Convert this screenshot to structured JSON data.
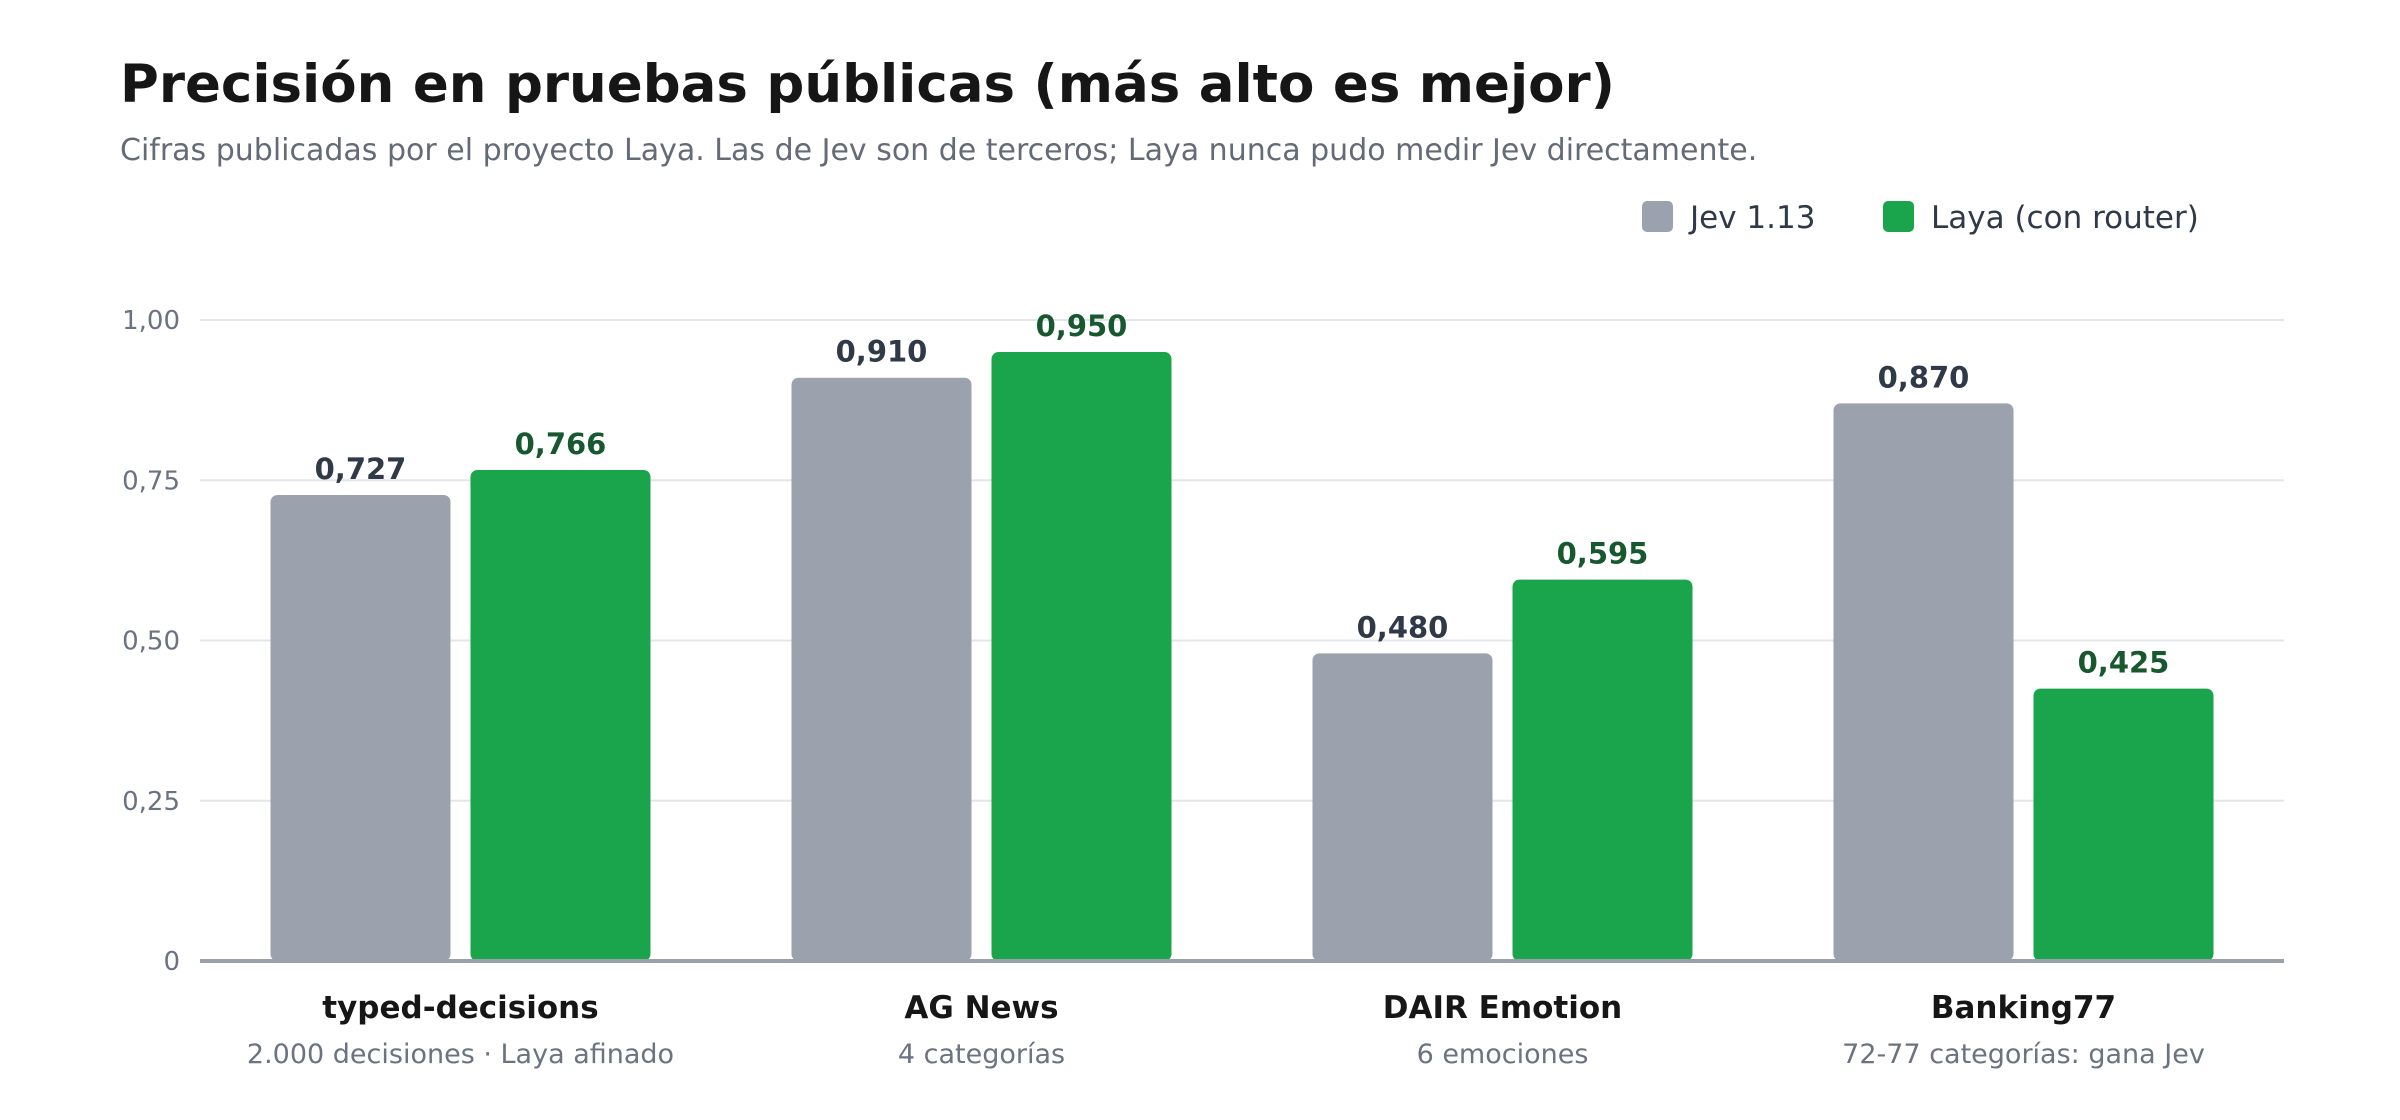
{
  "chart_data": {
    "type": "bar",
    "title": "Precisión en pruebas públicas (más alto es mejor)",
    "subtitle": "Cifras publicadas por el proyecto Laya. Las de Jev son de terceros; Laya nunca pudo medir Jev directamente.",
    "categories": [
      "typed-decisions",
      "AG News",
      "DAIR Emotion",
      "Banking77"
    ],
    "category_subtitles": [
      "2.000 decisiones · Laya afinado",
      "4 categorías",
      "6 emociones",
      "72-77 categorías: gana Jev"
    ],
    "series": [
      {
        "name": "Jev 1.13",
        "values": [
          0.727,
          0.91,
          0.48,
          0.87
        ],
        "labels": [
          "0,727",
          "0,910",
          "0,480",
          "0,870"
        ],
        "color": "#9ca2ad",
        "label_color": "#2f3947"
      },
      {
        "name": "Laya (con router)",
        "values": [
          0.766,
          0.95,
          0.595,
          0.425
        ],
        "labels": [
          "0,766",
          "0,950",
          "0,595",
          "0,425"
        ],
        "color": "#1aa44b",
        "label_color": "#17582f"
      }
    ],
    "ylim": [
      0,
      1
    ],
    "yticks": [
      0,
      0.25,
      0.5,
      0.75,
      1
    ],
    "ytick_labels": [
      "0",
      "0,25",
      "0,50",
      "0,75",
      "1,00"
    ],
    "grid": true,
    "legend_position": "top-right"
  }
}
